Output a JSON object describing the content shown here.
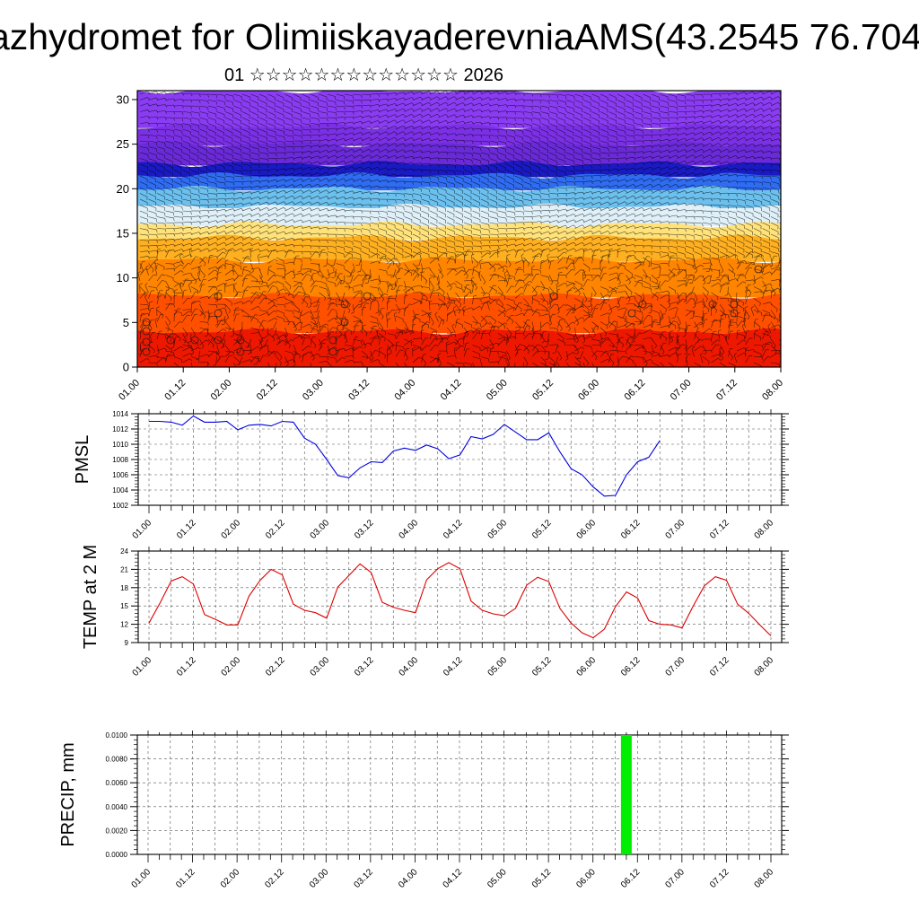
{
  "header": {
    "title": "azhydromet for OlimiiskayaderevniaAMS(43.2545 76.704",
    "subtitle": "01 ☆☆☆☆☆☆☆☆☆☆☆☆☆ 2026"
  },
  "colors": {
    "pmsl_line": "#0000dd",
    "temp_line": "#dd0000",
    "precip_bar": "#00ee00",
    "axis": "#000000",
    "grid": "#555555",
    "wind_barb": "#000000",
    "cross_section_colormap": [
      "#dd0000",
      "#ff5a00",
      "#ff9a00",
      "#ffd24a",
      "#fff2b0",
      "#cfe7f5",
      "#55b8ee",
      "#2a6ff0",
      "#1e1ec8",
      "#6a2cd8",
      "#8a3af0"
    ]
  },
  "chart_data": [
    {
      "type": "heatmap",
      "name": "vertical-cross-section",
      "x_tick_labels": [
        "01.00",
        "01.12",
        "02.00",
        "02.12",
        "03.00",
        "03.12",
        "04.00",
        "04.12",
        "05.00",
        "05.12",
        "06.00",
        "06.12",
        "07.00",
        "07.12",
        "08.00"
      ],
      "y_tick_labels": [
        "0",
        "5",
        "10",
        "15",
        "20",
        "25",
        "30"
      ],
      "ylim": [
        0,
        31
      ],
      "xlabel": "",
      "ylabel": "",
      "overlay": "wind barbs",
      "color_bands": [
        {
          "y_from": 0,
          "y_to": 4,
          "color": "#ee1800"
        },
        {
          "y_from": 4,
          "y_to": 8,
          "color": "#ff5000"
        },
        {
          "y_from": 8,
          "y_to": 12,
          "color": "#ff8400"
        },
        {
          "y_from": 12,
          "y_to": 14.5,
          "color": "#ffb020"
        },
        {
          "y_from": 14.5,
          "y_to": 16,
          "color": "#ffe27a"
        },
        {
          "y_from": 16,
          "y_to": 18,
          "color": "#e0f0f8"
        },
        {
          "y_from": 18,
          "y_to": 20,
          "color": "#6cc0ee"
        },
        {
          "y_from": 20,
          "y_to": 21.5,
          "color": "#2f6cf2"
        },
        {
          "y_from": 21.5,
          "y_to": 22.8,
          "color": "#1a1ac4"
        },
        {
          "y_from": 22.8,
          "y_to": 25,
          "color": "#6a2ad8"
        },
        {
          "y_from": 25,
          "y_to": 27,
          "color": "#7c30e6"
        },
        {
          "y_from": 27,
          "y_to": 31,
          "color": "#8a3cf2"
        }
      ],
      "grid": false
    },
    {
      "type": "line",
      "name": "pmsl",
      "ylabel": "PMSL",
      "ylim": [
        1002,
        1014
      ],
      "y_tick_labels": [
        "1002",
        "1004",
        "1006",
        "1008",
        "1010",
        "1012",
        "1014"
      ],
      "x_tick_labels": [
        "01.00",
        "01.12",
        "02.00",
        "02.12",
        "03.00",
        "03.12",
        "04.00",
        "04.12",
        "05.00",
        "05.12",
        "06.00",
        "06.12",
        "07.00",
        "07.12",
        "08.00"
      ],
      "x_step_hours": 3,
      "series": [
        {
          "values": [
            1013.0,
            1013.0,
            1012.9,
            1012.5,
            1013.7,
            1012.9,
            1012.9,
            1013.0,
            1011.9,
            1012.5,
            1012.6,
            1012.4,
            1013.0,
            1012.9,
            1010.8,
            1010.0,
            1008.0,
            1005.9,
            1005.6,
            1006.9,
            1007.7,
            1007.6,
            1009.1,
            1009.5,
            1009.2,
            1009.9,
            1009.4,
            1008.1,
            1008.6,
            1011.0,
            1010.7,
            1011.3,
            1012.6,
            1011.6,
            1010.6,
            1010.6,
            1011.5,
            1009.0,
            1006.8,
            1006.0,
            1004.4,
            1003.2,
            1003.3,
            1006.0,
            1007.7,
            1008.3,
            1010.5
          ]
        }
      ],
      "grid": true
    },
    {
      "type": "line",
      "name": "temp-2m",
      "ylabel": "TEMP at 2 M",
      "ylim": [
        9,
        24
      ],
      "y_tick_labels": [
        "9",
        "12",
        "15",
        "18",
        "21",
        "24"
      ],
      "x_tick_labels": [
        "01.00",
        "01.12",
        "02.00",
        "02.12",
        "03.00",
        "03.12",
        "04.00",
        "04.12",
        "05.00",
        "05.12",
        "06.00",
        "06.12",
        "07.00",
        "07.12",
        "08.00"
      ],
      "x_step_hours": 3,
      "series": [
        {
          "values": [
            12.2,
            15.5,
            19.1,
            19.8,
            18.6,
            13.6,
            12.8,
            11.9,
            11.9,
            16.6,
            19.2,
            21.0,
            20.1,
            15.3,
            14.3,
            13.9,
            13.0,
            18.1,
            20.0,
            21.9,
            20.5,
            15.6,
            14.8,
            14.3,
            13.9,
            19.3,
            21.1,
            22.1,
            21.1,
            15.8,
            14.3,
            13.7,
            13.4,
            14.6,
            18.4,
            19.7,
            19.0,
            14.6,
            12.2,
            10.6,
            9.8,
            11.2,
            14.9,
            17.3,
            16.3,
            12.6,
            12.0,
            11.9,
            11.4,
            15.0,
            18.3,
            19.8,
            19.2,
            15.3,
            13.8,
            11.9,
            10.1
          ]
        }
      ],
      "grid": true
    },
    {
      "type": "bar",
      "name": "precip",
      "ylabel": "PRECIP, mm",
      "ylim": [
        0,
        0.01
      ],
      "y_tick_labels": [
        "0.0000",
        "0.0020",
        "0.0040",
        "0.0060",
        "0.0080",
        "0.0100"
      ],
      "x_tick_labels": [
        "01.00",
        "01.12",
        "02.00",
        "02.12",
        "03.00",
        "03.12",
        "04.00",
        "04.12",
        "05.00",
        "05.12",
        "06.00",
        "06.12",
        "07.00",
        "07.12",
        "08.00"
      ],
      "bars": [
        {
          "x_hours": 129,
          "value": 0.01
        }
      ],
      "grid": true
    }
  ]
}
